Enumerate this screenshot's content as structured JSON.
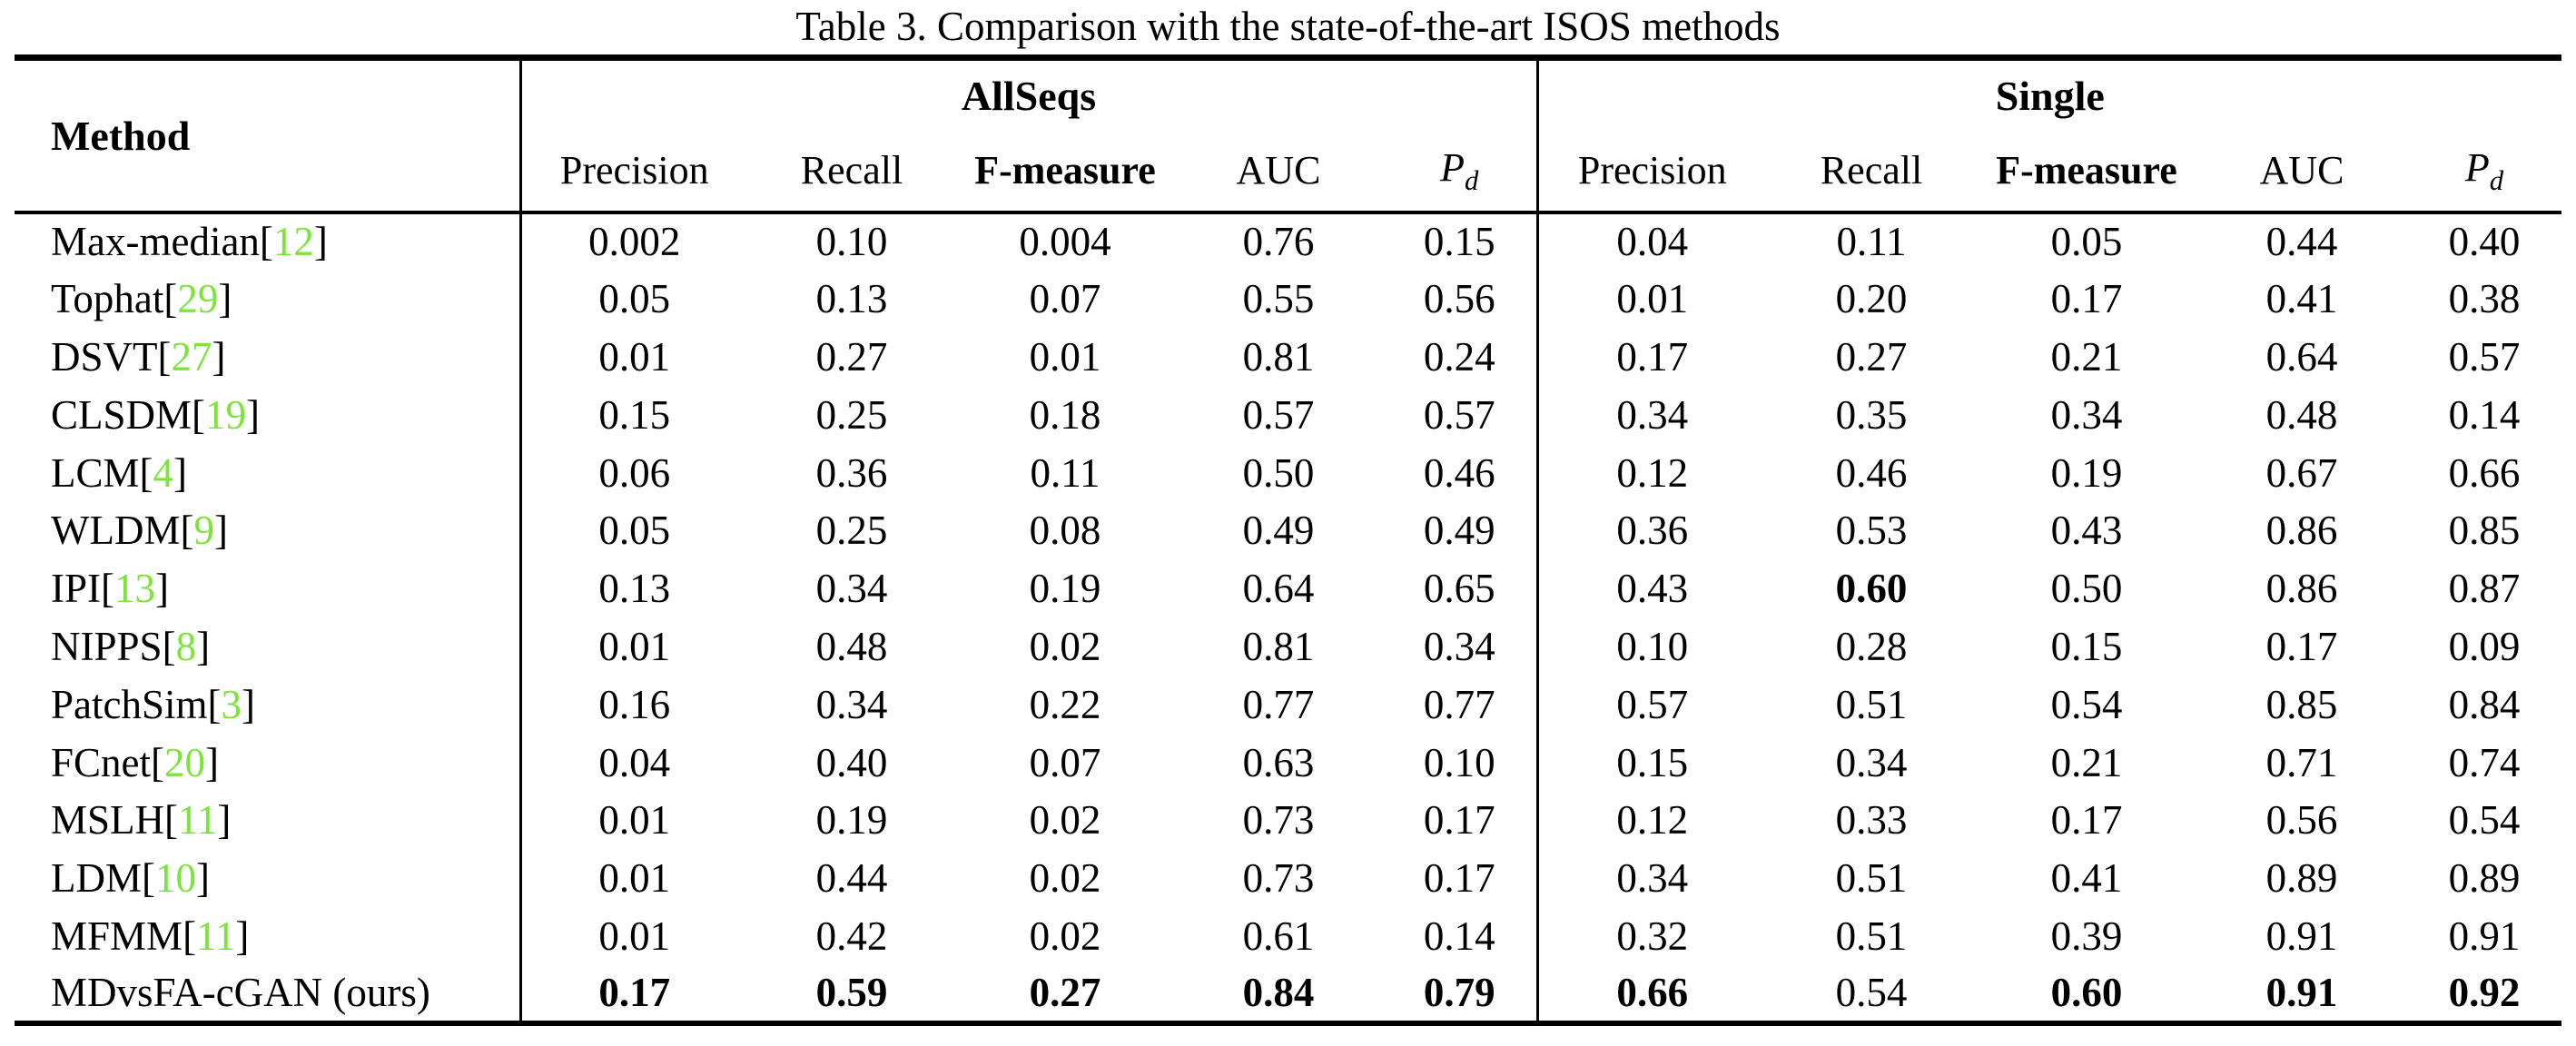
{
  "title": "Table 3. Comparison with the state-of-the-art ISOS methods",
  "colors": {
    "citation_green": "#7DE43B",
    "rule_black": "#000000"
  },
  "table": {
    "method_header": "Method",
    "cite_open": "[",
    "cite_close": "]",
    "groups": [
      {
        "label": "AllSeqs",
        "columns": [
          {
            "label": "Precision",
            "bold": false
          },
          {
            "label": "Recall",
            "bold": false
          },
          {
            "label": "F-measure",
            "bold": true
          },
          {
            "label": "AUC",
            "bold": false
          },
          {
            "label": "P",
            "sub": "d",
            "bold": false
          }
        ]
      },
      {
        "label": "Single",
        "columns": [
          {
            "label": "Precision",
            "bold": false
          },
          {
            "label": "Recall",
            "bold": false
          },
          {
            "label": "F-measure",
            "bold": true
          },
          {
            "label": "AUC",
            "bold": false
          },
          {
            "label": "P",
            "sub": "d",
            "bold": false
          }
        ]
      }
    ],
    "rows": [
      {
        "method": "Max-median",
        "cite": "12",
        "allseqs": [
          "0.002",
          "0.10",
          "0.004",
          "0.76",
          "0.15"
        ],
        "single": [
          "0.04",
          "0.11",
          "0.05",
          "0.44",
          "0.40"
        ],
        "bold_allseqs": [],
        "bold_single": []
      },
      {
        "method": "Tophat",
        "cite": "29",
        "allseqs": [
          "0.05",
          "0.13",
          "0.07",
          "0.55",
          "0.56"
        ],
        "single": [
          "0.01",
          "0.20",
          "0.17",
          "0.41",
          "0.38"
        ],
        "bold_allseqs": [],
        "bold_single": []
      },
      {
        "method": "DSVT",
        "cite": "27",
        "allseqs": [
          "0.01",
          "0.27",
          "0.01",
          "0.81",
          "0.24"
        ],
        "single": [
          "0.17",
          "0.27",
          "0.21",
          "0.64",
          "0.57"
        ],
        "bold_allseqs": [],
        "bold_single": []
      },
      {
        "method": "CLSDM",
        "cite": "19",
        "allseqs": [
          "0.15",
          "0.25",
          "0.18",
          "0.57",
          "0.57"
        ],
        "single": [
          "0.34",
          "0.35",
          "0.34",
          "0.48",
          "0.14"
        ],
        "bold_allseqs": [],
        "bold_single": []
      },
      {
        "method": "LCM",
        "cite": "4",
        "allseqs": [
          "0.06",
          "0.36",
          "0.11",
          "0.50",
          "0.46"
        ],
        "single": [
          "0.12",
          "0.46",
          "0.19",
          "0.67",
          "0.66"
        ],
        "bold_allseqs": [],
        "bold_single": []
      },
      {
        "method": "WLDM",
        "cite": "9",
        "allseqs": [
          "0.05",
          "0.25",
          "0.08",
          "0.49",
          "0.49"
        ],
        "single": [
          "0.36",
          "0.53",
          "0.43",
          "0.86",
          "0.85"
        ],
        "bold_allseqs": [],
        "bold_single": []
      },
      {
        "method": "IPI",
        "cite": "13",
        "allseqs": [
          "0.13",
          "0.34",
          "0.19",
          "0.64",
          "0.65"
        ],
        "single": [
          "0.43",
          "0.60",
          "0.50",
          "0.86",
          "0.87"
        ],
        "bold_allseqs": [],
        "bold_single": [
          1
        ]
      },
      {
        "method": "NIPPS",
        "cite": "8",
        "allseqs": [
          "0.01",
          "0.48",
          "0.02",
          "0.81",
          "0.34"
        ],
        "single": [
          "0.10",
          "0.28",
          "0.15",
          "0.17",
          "0.09"
        ],
        "bold_allseqs": [],
        "bold_single": []
      },
      {
        "method": "PatchSim",
        "cite": "3",
        "allseqs": [
          "0.16",
          "0.34",
          "0.22",
          "0.77",
          "0.77"
        ],
        "single": [
          "0.57",
          "0.51",
          "0.54",
          "0.85",
          "0.84"
        ],
        "bold_allseqs": [],
        "bold_single": []
      },
      {
        "method": "FCnet",
        "cite": "20",
        "allseqs": [
          "0.04",
          "0.40",
          "0.07",
          "0.63",
          "0.10"
        ],
        "single": [
          "0.15",
          "0.34",
          "0.21",
          "0.71",
          "0.74"
        ],
        "bold_allseqs": [],
        "bold_single": []
      },
      {
        "method": "MSLH",
        "cite": "11",
        "allseqs": [
          "0.01",
          "0.19",
          "0.02",
          "0.73",
          "0.17"
        ],
        "single": [
          "0.12",
          "0.33",
          "0.17",
          "0.56",
          "0.54"
        ],
        "bold_allseqs": [],
        "bold_single": []
      },
      {
        "method": "LDM",
        "cite": "10",
        "allseqs": [
          "0.01",
          "0.44",
          "0.02",
          "0.73",
          "0.17"
        ],
        "single": [
          "0.34",
          "0.51",
          "0.41",
          "0.89",
          "0.89"
        ],
        "bold_allseqs": [],
        "bold_single": []
      },
      {
        "method": "MFMM",
        "cite": "11",
        "allseqs": [
          "0.01",
          "0.42",
          "0.02",
          "0.61",
          "0.14"
        ],
        "single": [
          "0.32",
          "0.51",
          "0.39",
          "0.91",
          "0.91"
        ],
        "bold_allseqs": [],
        "bold_single": []
      },
      {
        "method": "MDvsFA-cGAN (ours)",
        "cite": null,
        "allseqs": [
          "0.17",
          "0.59",
          "0.27",
          "0.84",
          "0.79"
        ],
        "single": [
          "0.66",
          "0.54",
          "0.60",
          "0.91",
          "0.92"
        ],
        "bold_allseqs": [
          0,
          1,
          2,
          3,
          4
        ],
        "bold_single": [
          0,
          2,
          3,
          4
        ]
      }
    ]
  }
}
